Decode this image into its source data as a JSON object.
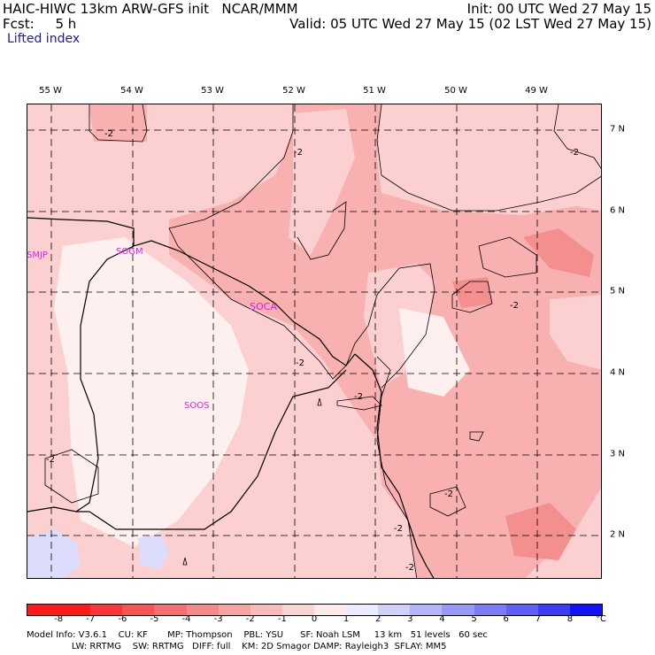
{
  "header": {
    "model_line": "HAIC-HIWC 13km ARW-GFS init   NCAR/MMM",
    "fcst_line": "Fcst:     5 h",
    "init_line": "Init: 00 UTC Wed 27 May 15",
    "valid_line": "Valid: 05 UTC Wed 27 May 15 (02 LST Wed 27 May 15)",
    "field_name": "Lifted index"
  },
  "map": {
    "lon_labels": [
      "55 W",
      "54 W",
      "53 W",
      "52 W",
      "51 W",
      "50 W",
      "49 W"
    ],
    "lat_labels": [
      "7 N",
      "6 N",
      "5 N",
      "4 N",
      "3 N",
      "2 N"
    ],
    "stations": [
      "SMJP",
      "SOGM",
      "SOCA",
      "SOOS"
    ],
    "contour_labels": [
      "-2",
      "-2",
      "-2",
      "-2",
      "-2",
      "-2",
      "-2",
      "-2",
      "-2",
      "-2",
      "-2",
      "-2"
    ],
    "shading_colors": {
      "lt_m1": "#fcd0d0",
      "lt_m2": "#f9b0b0",
      "lt_m3": "#f48f8f",
      "near_zero": "#fff0f0",
      "pos_1": "#dcdcfc",
      "pos_2": "#b4b4f8"
    },
    "boundary_color": "#000000"
  },
  "colorbar": {
    "tick_labels": [
      "-8",
      "-7",
      "-6",
      "-5",
      "-4",
      "-3",
      "-2",
      "-1",
      "0",
      "1",
      "2",
      "3",
      "4",
      "5",
      "6",
      "7",
      "8"
    ],
    "unit": "°C",
    "colors": [
      "#ff1a1a",
      "#fd3737",
      "#f95454",
      "#f66f6f",
      "#f48989",
      "#f6a3a3",
      "#f8bcbc",
      "#fad3d3",
      "#fdebeb",
      "#ececff",
      "#d0d0fb",
      "#b4b4f9",
      "#9898f7",
      "#7c7cf6",
      "#5f5ff5",
      "#3d3df5",
      "#1212f8"
    ]
  },
  "footer": {
    "line1": "Model Info: V3.6.1    CU: KF       MP: Thompson    PBL: YSU      SF: Noah LSM     13 km   51 levels   60 sec",
    "line2": "                LW: RRTMG    SW: RRTMG   DIFF: full    KM: 2D Smagor DAMP: Rayleigh3  SFLAY: MM5"
  }
}
